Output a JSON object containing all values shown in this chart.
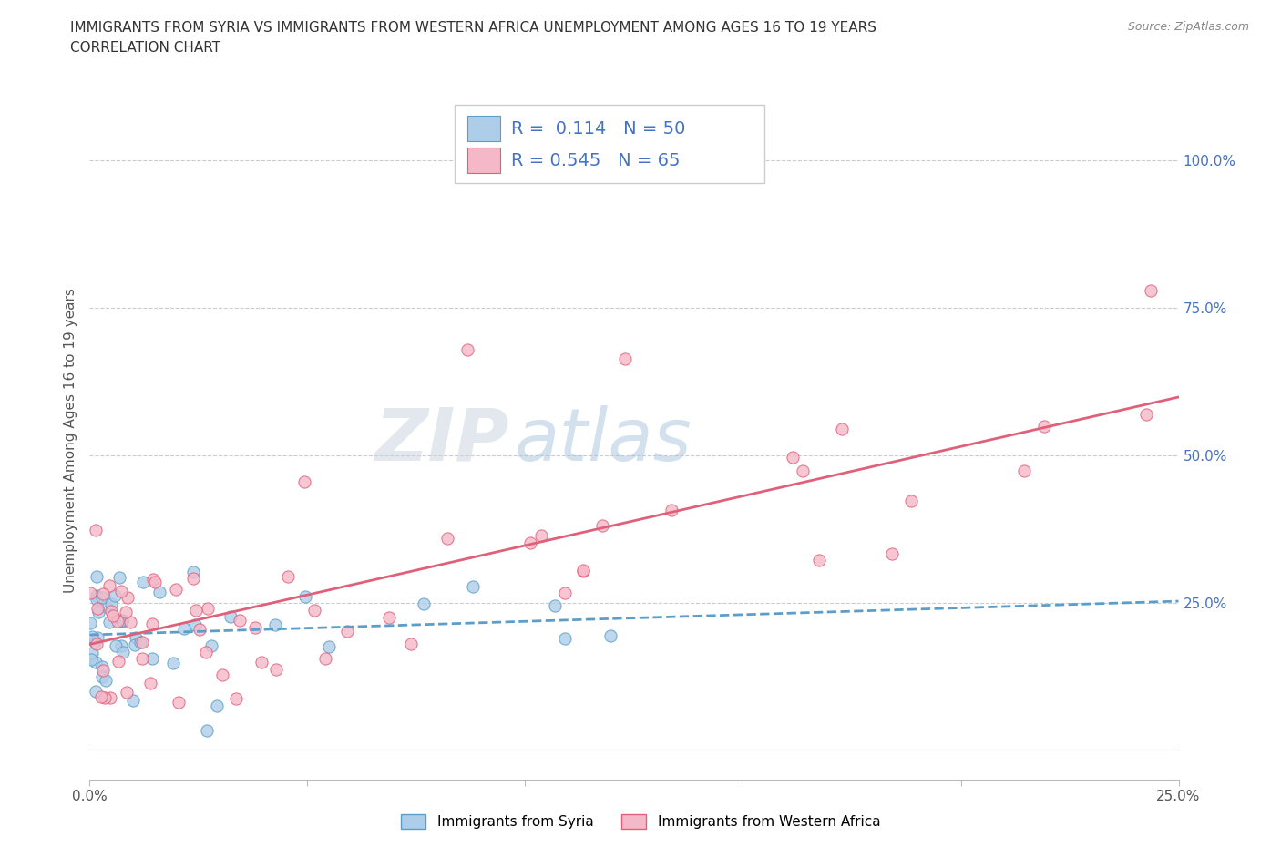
{
  "title_line1": "IMMIGRANTS FROM SYRIA VS IMMIGRANTS FROM WESTERN AFRICA UNEMPLOYMENT AMONG AGES 16 TO 19 YEARS",
  "title_line2": "CORRELATION CHART",
  "source_text": "Source: ZipAtlas.com",
  "ylabel": "Unemployment Among Ages 16 to 19 years",
  "xlim": [
    0.0,
    0.25
  ],
  "ylim": [
    -0.05,
    1.1
  ],
  "ytick_vals": [
    0.25,
    0.5,
    0.75,
    1.0
  ],
  "ytick_labels": [
    "25.0%",
    "50.0%",
    "75.0%",
    "100.0%"
  ],
  "xtick_vals": [
    0.0,
    0.05,
    0.1,
    0.15,
    0.2,
    0.25
  ],
  "xtick_labels": [
    "0.0%",
    "",
    "",
    "",
    "",
    "25.0%"
  ],
  "syria_color_fill": "#aecde8",
  "syria_color_edge": "#5b9ec9",
  "wa_color_fill": "#f5b8c8",
  "wa_color_edge": "#e0607a",
  "wa_line_color": "#e0607a",
  "syria_line_color": "#5b9ec9",
  "syria_R": 0.114,
  "syria_N": 50,
  "wa_R": 0.545,
  "wa_N": 65,
  "background_color": "#ffffff",
  "grid_color": "#cccccc",
  "tick_color": "#4472c4",
  "title_color": "#333333",
  "source_color": "#888888",
  "ylabel_color": "#555555",
  "watermark_zip_color": "#d0d8e8",
  "watermark_atlas_color": "#a8bcd8"
}
